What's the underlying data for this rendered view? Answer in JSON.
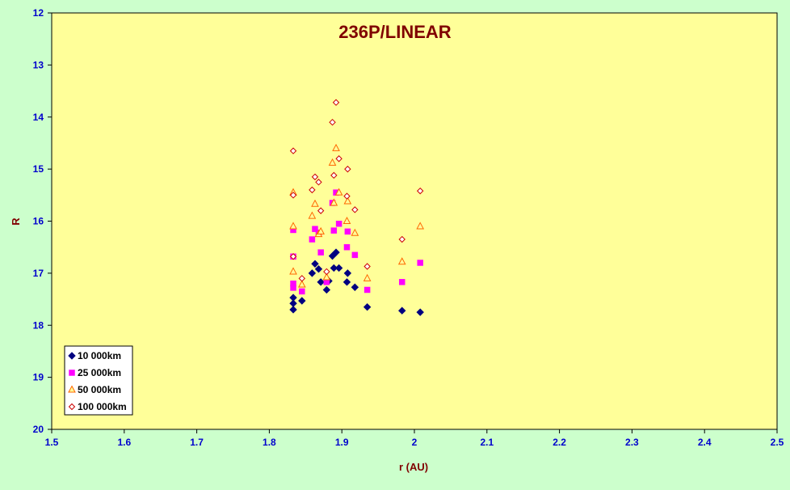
{
  "chart_data": {
    "type": "scatter",
    "title": "236P/LINEAR",
    "xlabel": "r (AU)",
    "ylabel": "R",
    "xlim": [
      1.5,
      2.5
    ],
    "ylim": [
      12,
      20
    ],
    "y_inverted": true,
    "x_ticks": [
      "1.5",
      "1.6",
      "1.7",
      "1.8",
      "1.9",
      "2",
      "2.1",
      "2.2",
      "2.3",
      "2.4",
      "2.5"
    ],
    "y_ticks": [
      "12",
      "13",
      "14",
      "15",
      "16",
      "17",
      "18",
      "19",
      "20"
    ],
    "grid": false,
    "legend_position": "bottom-left",
    "colors": {
      "figure_background": "#ccffcc",
      "plot_background": "#ffff99",
      "title": "#800000",
      "axis_labels": "#800000",
      "tick_labels": "#0000cc"
    },
    "series": [
      {
        "name": "10 000km",
        "marker": "diamond-filled",
        "color": "#000080",
        "points": [
          [
            1.833,
            17.47
          ],
          [
            1.833,
            17.58
          ],
          [
            1.833,
            17.7
          ],
          [
            1.845,
            17.53
          ],
          [
            1.859,
            17.0
          ],
          [
            1.863,
            16.82
          ],
          [
            1.868,
            16.92
          ],
          [
            1.871,
            17.17
          ],
          [
            1.879,
            17.32
          ],
          [
            1.882,
            17.15
          ],
          [
            1.887,
            16.67
          ],
          [
            1.889,
            16.9
          ],
          [
            1.892,
            16.6
          ],
          [
            1.896,
            16.9
          ],
          [
            1.907,
            17.17
          ],
          [
            1.908,
            17.0
          ],
          [
            1.918,
            17.27
          ],
          [
            1.935,
            17.65
          ],
          [
            1.983,
            17.72
          ],
          [
            2.008,
            17.75
          ]
        ]
      },
      {
        "name": "25 000km",
        "marker": "square-filled",
        "color": "#ff00ff",
        "points": [
          [
            1.833,
            16.17
          ],
          [
            1.833,
            16.68
          ],
          [
            1.833,
            17.2
          ],
          [
            1.833,
            17.28
          ],
          [
            1.845,
            17.35
          ],
          [
            1.859,
            16.35
          ],
          [
            1.863,
            16.15
          ],
          [
            1.868,
            16.22
          ],
          [
            1.871,
            16.6
          ],
          [
            1.879,
            17.17
          ],
          [
            1.887,
            15.65
          ],
          [
            1.889,
            16.18
          ],
          [
            1.892,
            15.45
          ],
          [
            1.896,
            16.05
          ],
          [
            1.907,
            16.5
          ],
          [
            1.908,
            16.2
          ],
          [
            1.918,
            16.65
          ],
          [
            1.935,
            17.32
          ],
          [
            1.983,
            17.17
          ],
          [
            2.008,
            16.8
          ]
        ]
      },
      {
        "name": "50 000km",
        "marker": "triangle-open",
        "color": "#ff6600",
        "points": [
          [
            1.833,
            15.45
          ],
          [
            1.833,
            16.1
          ],
          [
            1.833,
            16.97
          ],
          [
            1.845,
            17.22
          ],
          [
            1.859,
            15.9
          ],
          [
            1.863,
            15.67
          ],
          [
            1.868,
            16.25
          ],
          [
            1.871,
            16.2
          ],
          [
            1.879,
            17.08
          ],
          [
            1.887,
            14.88
          ],
          [
            1.889,
            15.65
          ],
          [
            1.892,
            14.6
          ],
          [
            1.896,
            15.45
          ],
          [
            1.907,
            16.0
          ],
          [
            1.908,
            15.62
          ],
          [
            1.918,
            16.23
          ],
          [
            1.935,
            17.1
          ],
          [
            1.983,
            16.78
          ],
          [
            2.008,
            16.1
          ]
        ]
      },
      {
        "name": "100 000km",
        "marker": "diamond-open",
        "color": "#cc0000",
        "points": [
          [
            1.833,
            14.65
          ],
          [
            1.833,
            15.5
          ],
          [
            1.833,
            16.68
          ],
          [
            1.845,
            17.1
          ],
          [
            1.859,
            15.4
          ],
          [
            1.863,
            15.15
          ],
          [
            1.868,
            15.25
          ],
          [
            1.871,
            15.8
          ],
          [
            1.879,
            16.97
          ],
          [
            1.887,
            14.1
          ],
          [
            1.889,
            15.12
          ],
          [
            1.892,
            13.72
          ],
          [
            1.896,
            14.8
          ],
          [
            1.907,
            15.52
          ],
          [
            1.908,
            15.0
          ],
          [
            1.918,
            15.78
          ],
          [
            1.935,
            16.87
          ],
          [
            1.983,
            16.35
          ],
          [
            2.008,
            15.42
          ]
        ]
      }
    ]
  }
}
